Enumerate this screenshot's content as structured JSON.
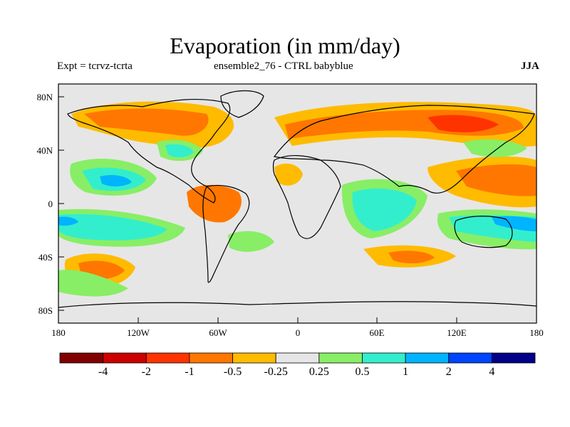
{
  "title": "Evaporation (in mm/day)",
  "subtitle_left": "Expt = tcrvz-tcrta",
  "subtitle_center": "ensemble2_76 - CTRL babyblue",
  "subtitle_right": "JJA",
  "lat_ticks": [
    "80N",
    "40N",
    "0",
    "40S",
    "80S"
  ],
  "lon_ticks": [
    "180",
    "120W",
    "60W",
    "0",
    "60E",
    "120E",
    "180"
  ],
  "colorbar": {
    "colors": [
      "#800000",
      "#cc0000",
      "#ff3300",
      "#ff7700",
      "#ffbb00",
      "#e6e6e6",
      "#88ee66",
      "#33eecc",
      "#00b4ff",
      "#0044ff",
      "#000088"
    ],
    "labels": [
      "-4",
      "-2",
      "-1",
      "-0.5",
      "-0.25",
      "0.25",
      "0.5",
      "1",
      "2",
      "4"
    ]
  }
}
